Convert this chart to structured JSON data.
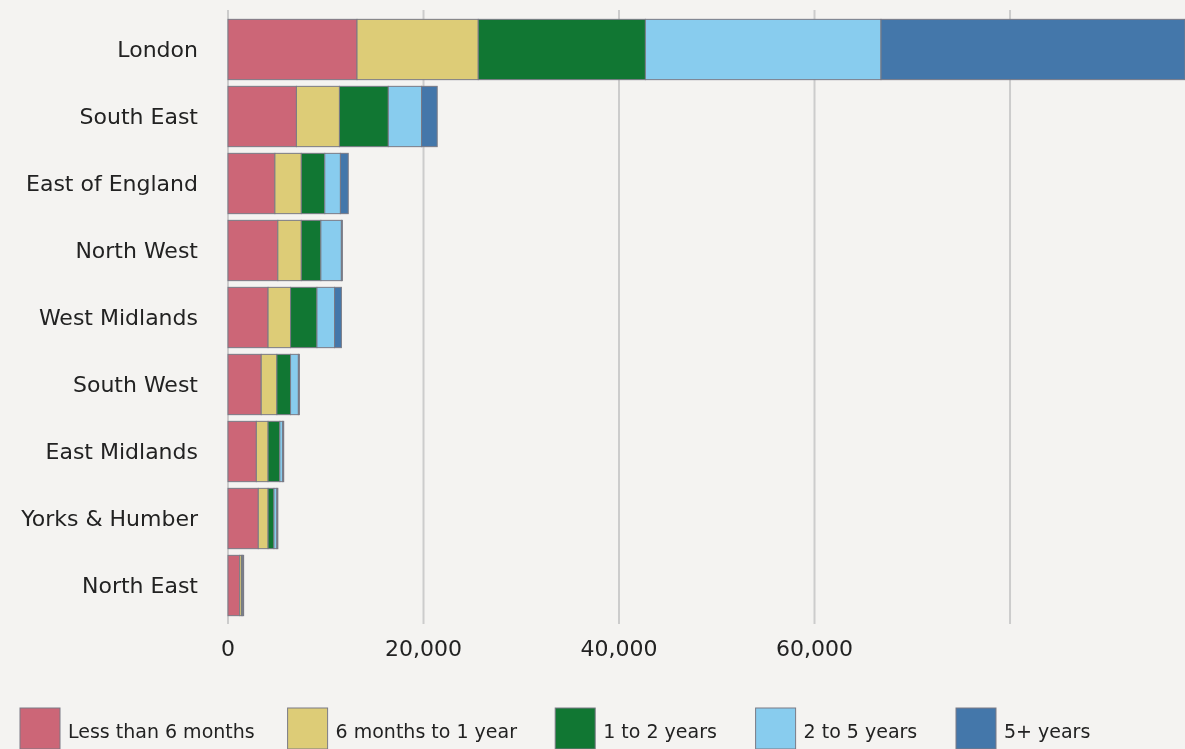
{
  "chart_data": {
    "type": "bar",
    "orientation": "horizontal",
    "stacked": true,
    "categories": [
      "London",
      "South East",
      "East of England",
      "North West",
      "West Midlands",
      "South West",
      "East Midlands",
      "Yorks & Humber",
      "North East"
    ],
    "series": [
      {
        "name": "Less than 6 months",
        "color": "#cc6677",
        "values": [
          13200,
          7000,
          4800,
          5100,
          4100,
          3400,
          2900,
          3100,
          1200
        ]
      },
      {
        "name": "6 months to 1 year",
        "color": "#ddcc77",
        "values": [
          12400,
          4400,
          2700,
          2400,
          2300,
          1600,
          1200,
          1000,
          200
        ]
      },
      {
        "name": "1 to 2 years",
        "color": "#117733",
        "values": [
          17100,
          5000,
          2400,
          2000,
          2700,
          1400,
          1200,
          600,
          100
        ]
      },
      {
        "name": "2 to 5 years",
        "color": "#88ccee",
        "values": [
          24100,
          3400,
          1600,
          2100,
          1800,
          800,
          300,
          300,
          100
        ]
      },
      {
        "name": "5+ years",
        "color": "#4477aa",
        "values": [
          31100,
          1600,
          800,
          100,
          700,
          100,
          100,
          100,
          0
        ]
      }
    ],
    "xlim": [
      0,
      97900
    ],
    "xticks": [
      {
        "value": 0,
        "label": "0"
      },
      {
        "value": 20000,
        "label": "20,000"
      },
      {
        "value": 40000,
        "label": "40,000"
      },
      {
        "value": 60000,
        "label": "60,000"
      },
      {
        "value": 80000,
        "label": null
      }
    ],
    "grid": "x",
    "legend": "bottom"
  }
}
